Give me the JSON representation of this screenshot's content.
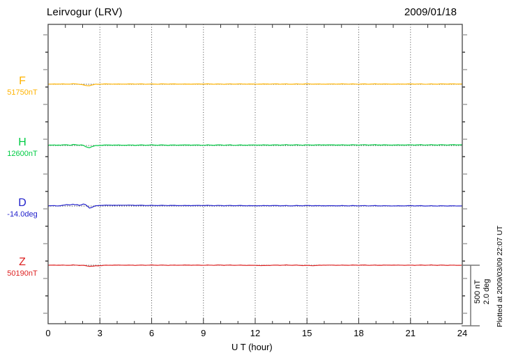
{
  "header": {
    "title": "Leirvogur (LRV)",
    "date": "2009/01/18"
  },
  "x_axis": {
    "label": "U T (hour)",
    "tick_labels": [
      "0",
      "3",
      "6",
      "9",
      "12",
      "15",
      "18",
      "21",
      "24"
    ]
  },
  "scale_bar": {
    "nt_label": "500 nT",
    "deg_label": "2.0 deg"
  },
  "plotted_note": "Plotted at 2009/03/09 22:07 UT",
  "colors": {
    "F": "#FFB300",
    "H": "#00CC44",
    "D": "#2222CC",
    "Z": "#DD2222",
    "frame": "#444444",
    "grid": "#444444",
    "baseline": "#111111",
    "minor_tick_gray": "#999999",
    "tick_black": "#333333",
    "scalebar": "#777777"
  },
  "chart_data": {
    "type": "line",
    "title": "Leirvogur (LRV)",
    "date": "2009/01/18",
    "xlabel": "U T (hour)",
    "x_range_hours": [
      0,
      24
    ],
    "x_major_tick_every_hours": 3,
    "x_minor_tick_every_hours": 1,
    "grid": "vertical dotted lines every 3 hours",
    "legend_position": "left of each trace",
    "scale_bar": {
      "nT": 500,
      "deg": 2.0
    },
    "series": [
      {
        "id": "F",
        "label": "F",
        "value_label": "51750nT",
        "baseline": 51750,
        "unit": "nT",
        "color": "#FFB300",
        "noise": 2,
        "points": [
          [
            0,
            0
          ],
          [
            0.5,
            2
          ],
          [
            1.0,
            1
          ],
          [
            1.5,
            3
          ],
          [
            1.8,
            1
          ],
          [
            2.0,
            -4
          ],
          [
            2.15,
            -11
          ],
          [
            2.35,
            -12
          ],
          [
            2.55,
            -6
          ],
          [
            2.75,
            -1
          ],
          [
            3,
            1
          ],
          [
            3.5,
            2
          ],
          [
            4,
            1
          ],
          [
            5,
            2
          ],
          [
            6,
            1
          ],
          [
            7,
            2
          ],
          [
            8,
            1
          ],
          [
            9,
            2
          ],
          [
            10,
            1
          ],
          [
            11,
            2
          ],
          [
            12,
            1
          ],
          [
            13,
            2
          ],
          [
            14,
            1
          ],
          [
            15,
            2
          ],
          [
            16,
            1
          ],
          [
            17,
            2
          ],
          [
            18,
            1
          ],
          [
            19,
            2
          ],
          [
            20,
            1
          ],
          [
            21,
            2
          ],
          [
            22,
            1
          ],
          [
            23,
            2
          ],
          [
            24,
            2
          ]
        ]
      },
      {
        "id": "H",
        "label": "H",
        "value_label": "12600nT",
        "baseline": 12600,
        "unit": "nT",
        "color": "#00CC44",
        "noise": 2.5,
        "points": [
          [
            0,
            2
          ],
          [
            0.4,
            4
          ],
          [
            0.8,
            3
          ],
          [
            1.1,
            7
          ],
          [
            1.3,
            2
          ],
          [
            1.5,
            8
          ],
          [
            1.7,
            4
          ],
          [
            1.9,
            6
          ],
          [
            2.05,
            0
          ],
          [
            2.2,
            -14
          ],
          [
            2.4,
            -16
          ],
          [
            2.6,
            -7
          ],
          [
            2.8,
            -1
          ],
          [
            3,
            2
          ],
          [
            3.5,
            4
          ],
          [
            4,
            3
          ],
          [
            5,
            3
          ],
          [
            6,
            4
          ],
          [
            7,
            3
          ],
          [
            8,
            4
          ],
          [
            9,
            3
          ],
          [
            10,
            4
          ],
          [
            11,
            3
          ],
          [
            12,
            4
          ],
          [
            13,
            4
          ],
          [
            14,
            5
          ],
          [
            15,
            4
          ],
          [
            16,
            5
          ],
          [
            17,
            4
          ],
          [
            18,
            5
          ],
          [
            19,
            5
          ],
          [
            20,
            4
          ],
          [
            21,
            5
          ],
          [
            22,
            5
          ],
          [
            23,
            5
          ],
          [
            24,
            6
          ]
        ]
      },
      {
        "id": "D",
        "label": "D",
        "value_label": "-14.0deg",
        "baseline": -14.0,
        "unit": "deg",
        "color": "#2222CC",
        "noise": 0.008,
        "points": [
          [
            0,
            0.005
          ],
          [
            0.3,
            0.015
          ],
          [
            0.6,
            0.005
          ],
          [
            0.9,
            0.025
          ],
          [
            1.1,
            0.055
          ],
          [
            1.25,
            0.035
          ],
          [
            1.4,
            0.06
          ],
          [
            1.55,
            0.04
          ],
          [
            1.7,
            0.05
          ],
          [
            1.85,
            0.02
          ],
          [
            2.0,
            0.06
          ],
          [
            2.1,
            0.07
          ],
          [
            2.25,
            0.01
          ],
          [
            2.4,
            -0.06
          ],
          [
            2.55,
            -0.045
          ],
          [
            2.7,
            0.0
          ],
          [
            2.9,
            0.02
          ],
          [
            3.2,
            0.025
          ],
          [
            3.6,
            0.03
          ],
          [
            4,
            0.025
          ],
          [
            4.5,
            0.03
          ],
          [
            5,
            0.025
          ],
          [
            6,
            0.02
          ],
          [
            7,
            0.02
          ],
          [
            8,
            0.015
          ],
          [
            9,
            0.02
          ],
          [
            10,
            0.015
          ],
          [
            11,
            0.015
          ],
          [
            12,
            0.01
          ],
          [
            13,
            0.015
          ],
          [
            14,
            0.01
          ],
          [
            15,
            0.015
          ],
          [
            16,
            0.01
          ],
          [
            17,
            0.01
          ],
          [
            18,
            0.01
          ],
          [
            19,
            0.01
          ],
          [
            20,
            0.005
          ],
          [
            21,
            0.01
          ],
          [
            22,
            0.005
          ],
          [
            23,
            0.005
          ],
          [
            24,
            0.005
          ]
        ]
      },
      {
        "id": "Z",
        "label": "Z",
        "value_label": "50190nT",
        "baseline": 50190,
        "unit": "nT",
        "color": "#DD2222",
        "noise": 2,
        "points": [
          [
            0,
            0
          ],
          [
            0.5,
            1
          ],
          [
            1,
            0
          ],
          [
            1.5,
            1
          ],
          [
            2.0,
            -1
          ],
          [
            2.3,
            -7
          ],
          [
            2.6,
            -8
          ],
          [
            2.9,
            -4
          ],
          [
            3.2,
            -1
          ],
          [
            3.5,
            0
          ],
          [
            4,
            1
          ],
          [
            5,
            0
          ],
          [
            6,
            1
          ],
          [
            7,
            0
          ],
          [
            8,
            1
          ],
          [
            9,
            0
          ],
          [
            10,
            1
          ],
          [
            11,
            0
          ],
          [
            12,
            -1
          ],
          [
            12.4,
            -3
          ],
          [
            12.8,
            -1
          ],
          [
            13,
            0
          ],
          [
            14,
            1
          ],
          [
            15,
            -2
          ],
          [
            15.4,
            -3
          ],
          [
            15.8,
            0
          ],
          [
            16,
            1
          ],
          [
            17,
            0
          ],
          [
            18,
            1
          ],
          [
            19,
            0
          ],
          [
            20,
            1
          ],
          [
            21,
            0
          ],
          [
            22,
            1
          ],
          [
            23,
            0
          ],
          [
            24,
            0
          ]
        ]
      }
    ]
  }
}
